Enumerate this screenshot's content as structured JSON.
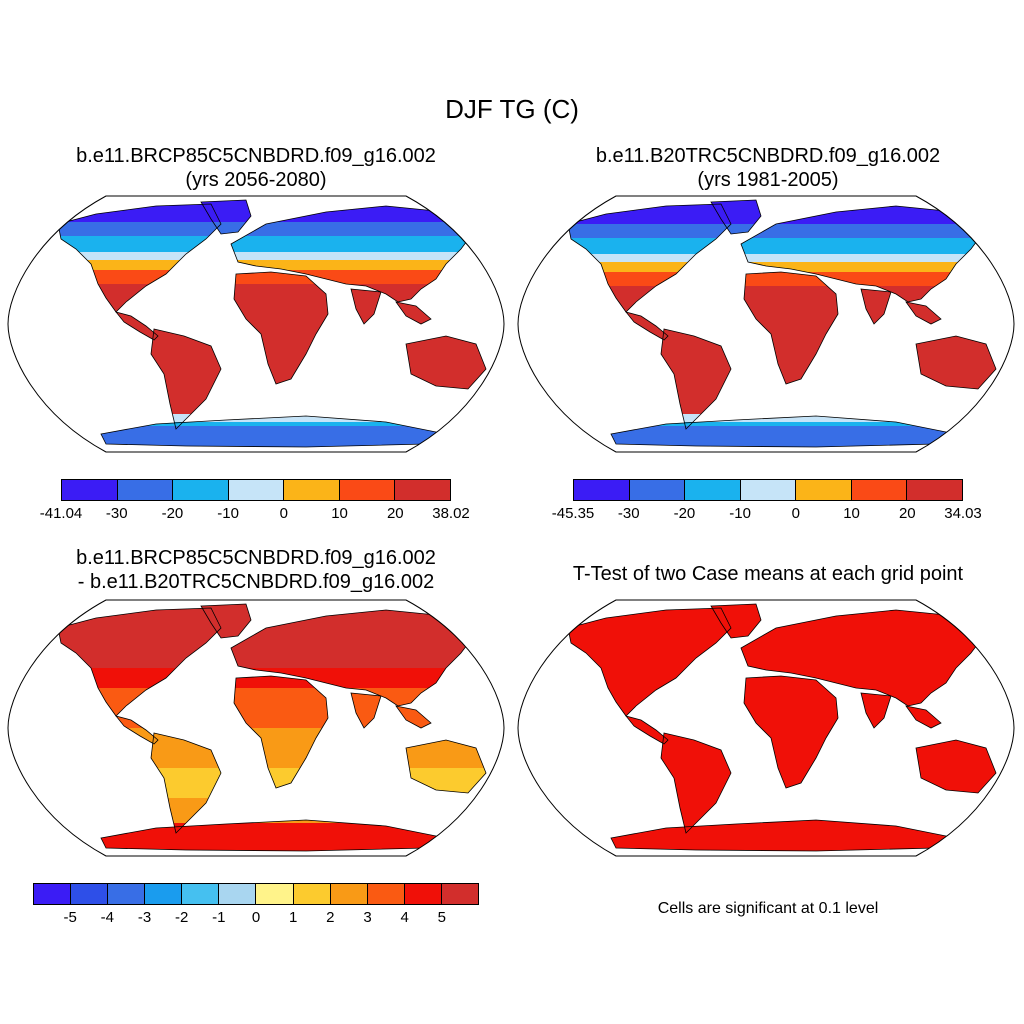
{
  "main_title": "DJF TG (C)",
  "panels": [
    {
      "title_line1": "b.e11.BRCP85C5CNBDRD.f09_g16.002",
      "title_line2": "(yrs 2056-2080)",
      "colorbar": {
        "colors": [
          "#3b1cf5",
          "#386ee6",
          "#1ab2ee",
          "#c6e4f8",
          "#fbb418",
          "#fa4a16",
          "#d22e2c"
        ],
        "labels": [
          "-41.04",
          "-30",
          "-20",
          "-10",
          "0",
          "10",
          "20",
          "38.02"
        ]
      }
    },
    {
      "title_line1": "b.e11.B20TRC5CNBDRD.f09_g16.002",
      "title_line2": "(yrs 1981-2005)",
      "colorbar": {
        "colors": [
          "#3b1cf5",
          "#386ee6",
          "#1ab2ee",
          "#c6e4f8",
          "#fbb418",
          "#fa4a16",
          "#d22e2c"
        ],
        "labels": [
          "-45.35",
          "-30",
          "-20",
          "-10",
          "0",
          "10",
          "20",
          "34.03"
        ]
      }
    },
    {
      "title_line1": "b.e11.BRCP85C5CNBDRD.f09_g16.002",
      "title_line2": "- b.e11.B20TRC5CNBDRD.f09_g16.002",
      "colorbar": {
        "colors": [
          "#3b1cf5",
          "#2e4fe8",
          "#386ee6",
          "#1a9cee",
          "#45c0f0",
          "#a9d6f0",
          "#fff38a",
          "#fccb2e",
          "#f99a16",
          "#fa5a12",
          "#f01008",
          "#d22e2c"
        ],
        "labels": [
          "-5",
          "-4",
          "-3",
          "-2",
          "-1",
          "0",
          "1",
          "2",
          "3",
          "4",
          "5"
        ]
      }
    },
    {
      "title": "T-Test of two Case means at each grid point",
      "note": "Cells are significant at 0.1 level"
    }
  ]
}
